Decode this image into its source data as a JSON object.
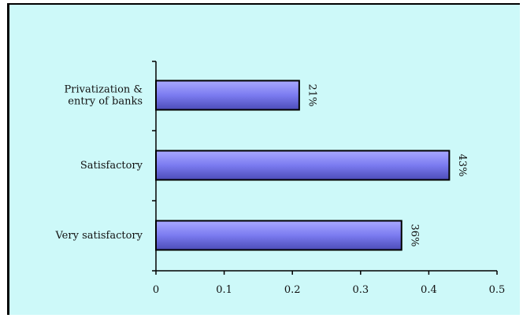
{
  "chart_data": {
    "type": "bar",
    "orientation": "horizontal",
    "categories": [
      [
        "Privatization &",
        "entry of banks"
      ],
      [
        "Satisfactory"
      ],
      [
        "Very satisfactory"
      ]
    ],
    "values": [
      0.21,
      0.43,
      0.36
    ],
    "data_labels": [
      "21%",
      "43%",
      "36%"
    ],
    "xlim": [
      0,
      0.5
    ],
    "xticks": [
      0,
      0.1,
      0.2,
      0.3,
      0.4,
      0.5
    ],
    "xtick_labels": [
      "0",
      "0.1",
      "0.2",
      "0.3",
      "0.4",
      "0.5"
    ],
    "grid": false,
    "title": "",
    "xlabel": "",
    "ylabel": ""
  },
  "colors": {
    "background": "#cdf9f9",
    "bar_fill": "#7b7bf0",
    "bar_stroke": "#000000",
    "axis": "#000000"
  }
}
